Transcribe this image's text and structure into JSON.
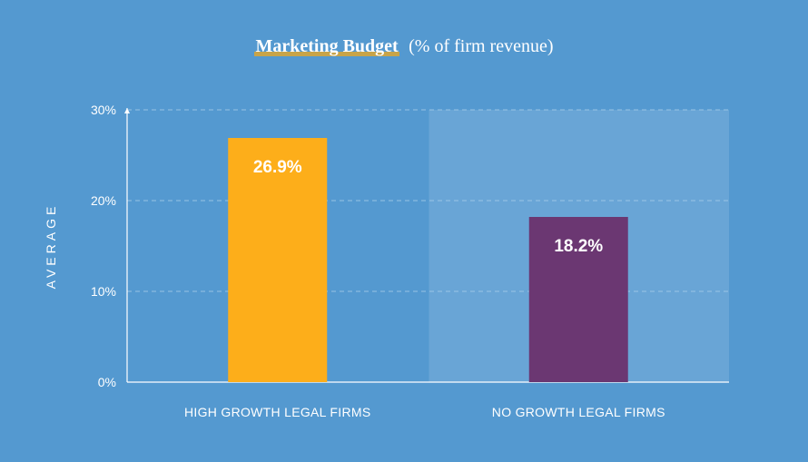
{
  "title": {
    "main": "Marketing Budget",
    "sub": "(% of firm revenue)"
  },
  "colors": {
    "background": "#5499d0",
    "highlight_panel": "#69a5d6",
    "underline": "#c8a449",
    "gridline": "#a9cdea"
  },
  "chart_data": {
    "type": "bar",
    "categories": [
      "HIGH GROWTH LEGAL FIRMS",
      "NO GROWTH LEGAL FIRMS"
    ],
    "values": [
      26.9,
      18.2
    ],
    "value_labels": [
      "26.9%",
      "18.2%"
    ],
    "bar_colors": [
      "#fdae1a",
      "#6b3772"
    ],
    "ylabel": "AVERAGE",
    "xlabel": "",
    "ylim": [
      0,
      30
    ],
    "yticks": [
      0,
      10,
      20,
      30
    ],
    "ytick_labels": [
      "0%",
      "10%",
      "20%",
      "30%"
    ],
    "grid": true
  }
}
